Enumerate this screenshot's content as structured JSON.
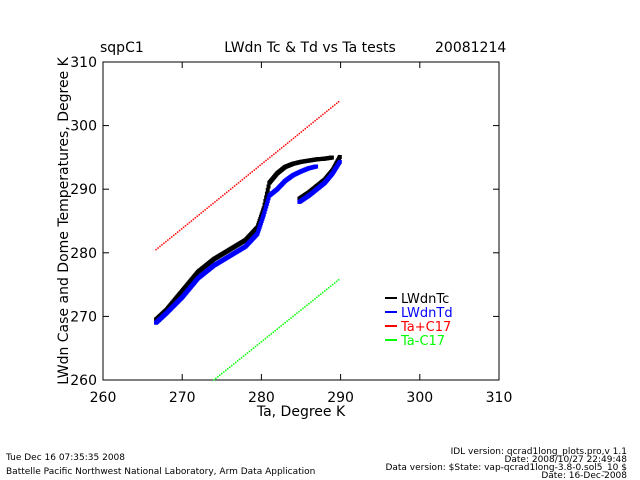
{
  "chart_data": {
    "type": "scatter",
    "site": "sqpC1",
    "title": "LWdn Tc & Td vs Ta tests",
    "date": "20081214",
    "xlabel": "Ta, Degree K",
    "ylabel": "LWdn Case and Dome Temperatures, Degree K",
    "xlim": [
      260,
      310
    ],
    "ylim": [
      260,
      310
    ],
    "xticks": [
      260,
      270,
      280,
      290,
      300,
      310
    ],
    "yticks": [
      260,
      270,
      280,
      290,
      300,
      310
    ],
    "legend_position": "right",
    "series": [
      {
        "name": "LWdnTc",
        "color": "#000000",
        "x": [
          266.7,
          268,
          270,
          272,
          274,
          276,
          278,
          279.5,
          280.3,
          281,
          282,
          283,
          284,
          285,
          286,
          287,
          288,
          289
        ],
        "y": [
          269.5,
          271,
          274,
          277,
          279,
          280.5,
          282,
          284,
          287,
          291,
          292.5,
          293.5,
          294,
          294.3,
          294.5,
          294.7,
          294.8,
          295
        ],
        "x2": [
          284.8,
          286,
          287,
          288,
          289,
          290
        ],
        "y2": [
          288.5,
          289.5,
          290.5,
          291.5,
          293,
          295.3
        ]
      },
      {
        "name": "LWdnTd",
        "color": "#0000ff",
        "x": [
          266.7,
          268,
          270,
          272,
          274,
          276,
          278,
          279.5,
          280.3,
          281,
          282,
          283,
          284,
          285,
          286,
          287
        ],
        "y": [
          269,
          270.5,
          273,
          276,
          278,
          279.5,
          281,
          283,
          286,
          289,
          290,
          291.3,
          292.2,
          292.8,
          293.3,
          293.6
        ],
        "x2": [
          284.8,
          286,
          287,
          288,
          289,
          290
        ],
        "y2": [
          288,
          289,
          290,
          291,
          292.5,
          294.5
        ]
      },
      {
        "name": "Ta+C17",
        "color": "#ff0000",
        "x": [
          266.7,
          290
        ],
        "y": [
          280.5,
          304
        ]
      },
      {
        "name": "Ta-C17",
        "color": "#00ff00",
        "x": [
          274,
          290
        ],
        "y": [
          260,
          276
        ]
      }
    ]
  },
  "footer": {
    "timestamp": "Tue Dec 16 07:35:35 2008",
    "org": "Battelle Pacific Northwest National Laboratory, Arm Data Application",
    "idl_version": "IDL version: qcrad1long_plots.pro,v 1.1",
    "idl_date": "Date: 2008/10/27 22:49:48",
    "data_version": "Data version: $State: vap-qcrad1long-3.8-0.sol5_10 $",
    "data_date": "Date: 16-Dec-2008"
  }
}
